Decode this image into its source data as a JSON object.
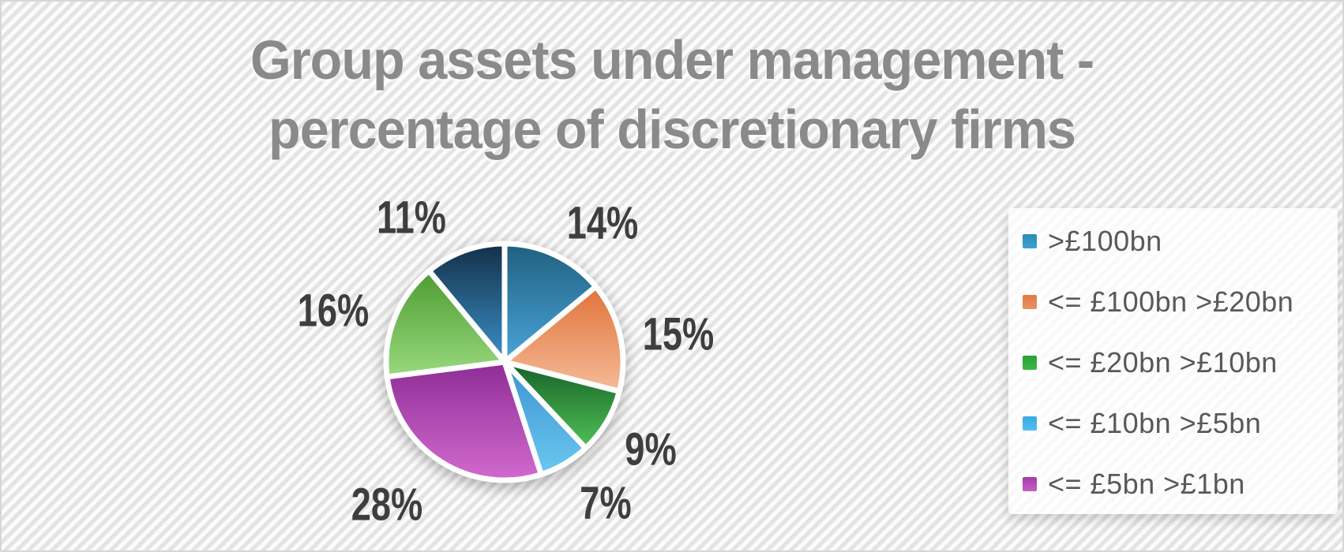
{
  "title": {
    "line1": "Group assets under management -",
    "line2": "percentage of discretionary firms",
    "color": "#8a8a8a"
  },
  "chart_data": {
    "type": "pie",
    "title": "Group assets under management - percentage of discretionary firms",
    "unit": "%",
    "direction": "clockwise",
    "start_angle_deg": 0,
    "legend_position": "right",
    "slices": [
      {
        "legend_label": ">£100bn",
        "value": 14,
        "display": "14%",
        "color_top": "#20607f",
        "color_bottom": "#4aa4d9"
      },
      {
        "legend_label": "<= £100bn >£20bn",
        "value": 15,
        "display": "15%",
        "color_top": "#e0733a",
        "color_bottom": "#f5bb97"
      },
      {
        "legend_label": "<= £20bn >£10bn",
        "value": 9,
        "display": "9%",
        "color_top": "#176128",
        "color_bottom": "#4fc157"
      },
      {
        "legend_label": "<= £10bn >£5bn",
        "value": 7,
        "display": "7%",
        "color_top": "#3e92cf",
        "color_bottom": "#69c8f1"
      },
      {
        "legend_label": "<= £5bn >£1bn",
        "value": 28,
        "display": "28%",
        "color_top": "#8e2d96",
        "color_bottom": "#d26ace"
      },
      {
        "legend_label": null,
        "value": 16,
        "display": "16%",
        "color_top": "#4f9b31",
        "color_bottom": "#98da7e"
      },
      {
        "legend_label": null,
        "value": 11,
        "display": "11%",
        "color_top": "#133049",
        "color_bottom": "#3c90c8"
      }
    ],
    "data_label_color": "#3e3e3e"
  },
  "legend": {
    "items": [
      {
        "label": ">£100bn",
        "color_top": "#2a8ab8",
        "color_bottom": "#3ba3d4"
      },
      {
        "label": "<= £100bn >£20bn",
        "color_top": "#e17a42",
        "color_bottom": "#eb9265"
      },
      {
        "label": "<= £20bn >£10bn",
        "color_top": "#27a033",
        "color_bottom": "#3bb94a"
      },
      {
        "label": "<= £10bn >£5bn",
        "color_top": "#3aa9e0",
        "color_bottom": "#55bdf0"
      },
      {
        "label": "<= £5bn >£1bn",
        "color_top": "#a03ea6",
        "color_bottom": "#c95ec4"
      }
    ],
    "text_color": "#595959"
  }
}
